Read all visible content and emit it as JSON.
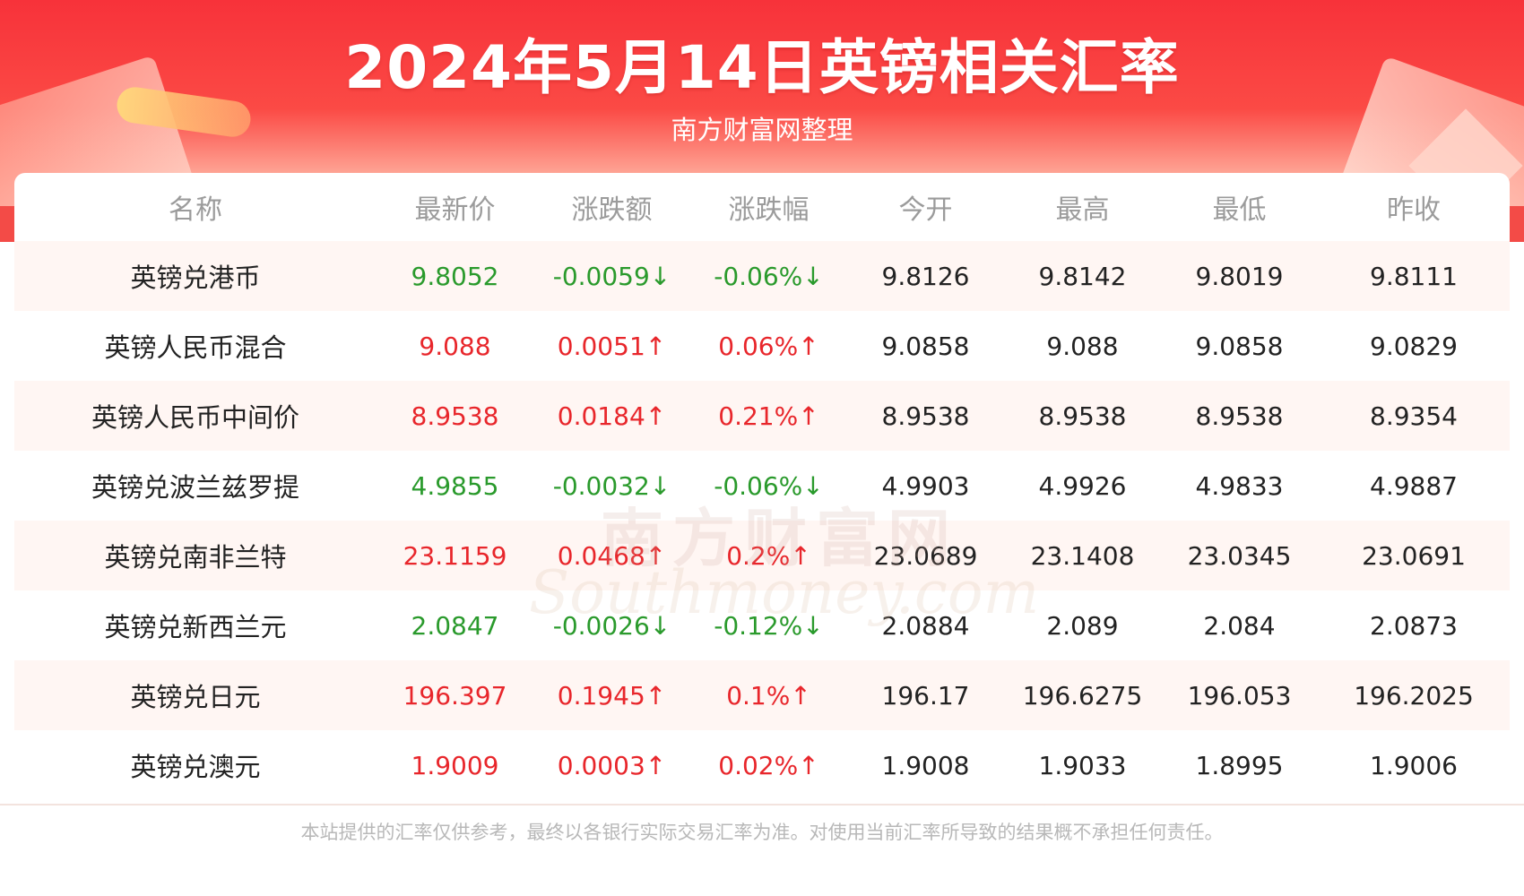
{
  "header": {
    "title": "2024年5月14日英镑相关汇率",
    "subtitle": "南方财富网整理"
  },
  "table": {
    "columns": [
      "名称",
      "最新价",
      "涨跌额",
      "涨跌幅",
      "今开",
      "最高",
      "最低",
      "昨收"
    ],
    "rows": [
      {
        "name": "英镑兑港币",
        "latest": "9.8052",
        "change": "-0.0059↓",
        "pct": "-0.06%↓",
        "open": "9.8126",
        "high": "9.8142",
        "low": "9.8019",
        "prev": "9.8111",
        "trend": "down"
      },
      {
        "name": "英镑人民币混合",
        "latest": "9.088",
        "change": "0.0051↑",
        "pct": "0.06%↑",
        "open": "9.0858",
        "high": "9.088",
        "low": "9.0858",
        "prev": "9.0829",
        "trend": "up"
      },
      {
        "name": "英镑人民币中间价",
        "latest": "8.9538",
        "change": "0.0184↑",
        "pct": "0.21%↑",
        "open": "8.9538",
        "high": "8.9538",
        "low": "8.9538",
        "prev": "8.9354",
        "trend": "up"
      },
      {
        "name": "英镑兑波兰兹罗提",
        "latest": "4.9855",
        "change": "-0.0032↓",
        "pct": "-0.06%↓",
        "open": "4.9903",
        "high": "4.9926",
        "low": "4.9833",
        "prev": "4.9887",
        "trend": "down"
      },
      {
        "name": "英镑兑南非兰特",
        "latest": "23.1159",
        "change": "0.0468↑",
        "pct": "0.2%↑",
        "open": "23.0689",
        "high": "23.1408",
        "low": "23.0345",
        "prev": "23.0691",
        "trend": "up"
      },
      {
        "name": "英镑兑新西兰元",
        "latest": "2.0847",
        "change": "-0.0026↓",
        "pct": "-0.12%↓",
        "open": "2.0884",
        "high": "2.089",
        "low": "2.084",
        "prev": "2.0873",
        "trend": "down"
      },
      {
        "name": "英镑兑日元",
        "latest": "196.397",
        "change": "0.1945↑",
        "pct": "0.1%↑",
        "open": "196.17",
        "high": "196.6275",
        "low": "196.053",
        "prev": "196.2025",
        "trend": "up"
      },
      {
        "name": "英镑兑澳元",
        "latest": "1.9009",
        "change": "0.0003↑",
        "pct": "0.02%↑",
        "open": "1.9008",
        "high": "1.9033",
        "low": "1.8995",
        "prev": "1.9006",
        "trend": "up"
      }
    ]
  },
  "watermark": {
    "cn": "南方财富网",
    "en": "Southmoney.com"
  },
  "footer": {
    "disclaimer": "本站提供的汇率仅供参考，最终以各银行实际交易汇率为准。对使用当前汇率所导致的结果概不承担任何责任。"
  },
  "colors": {
    "up": "#e8262b",
    "down": "#2a9a2c",
    "banner": "#f7323a"
  }
}
